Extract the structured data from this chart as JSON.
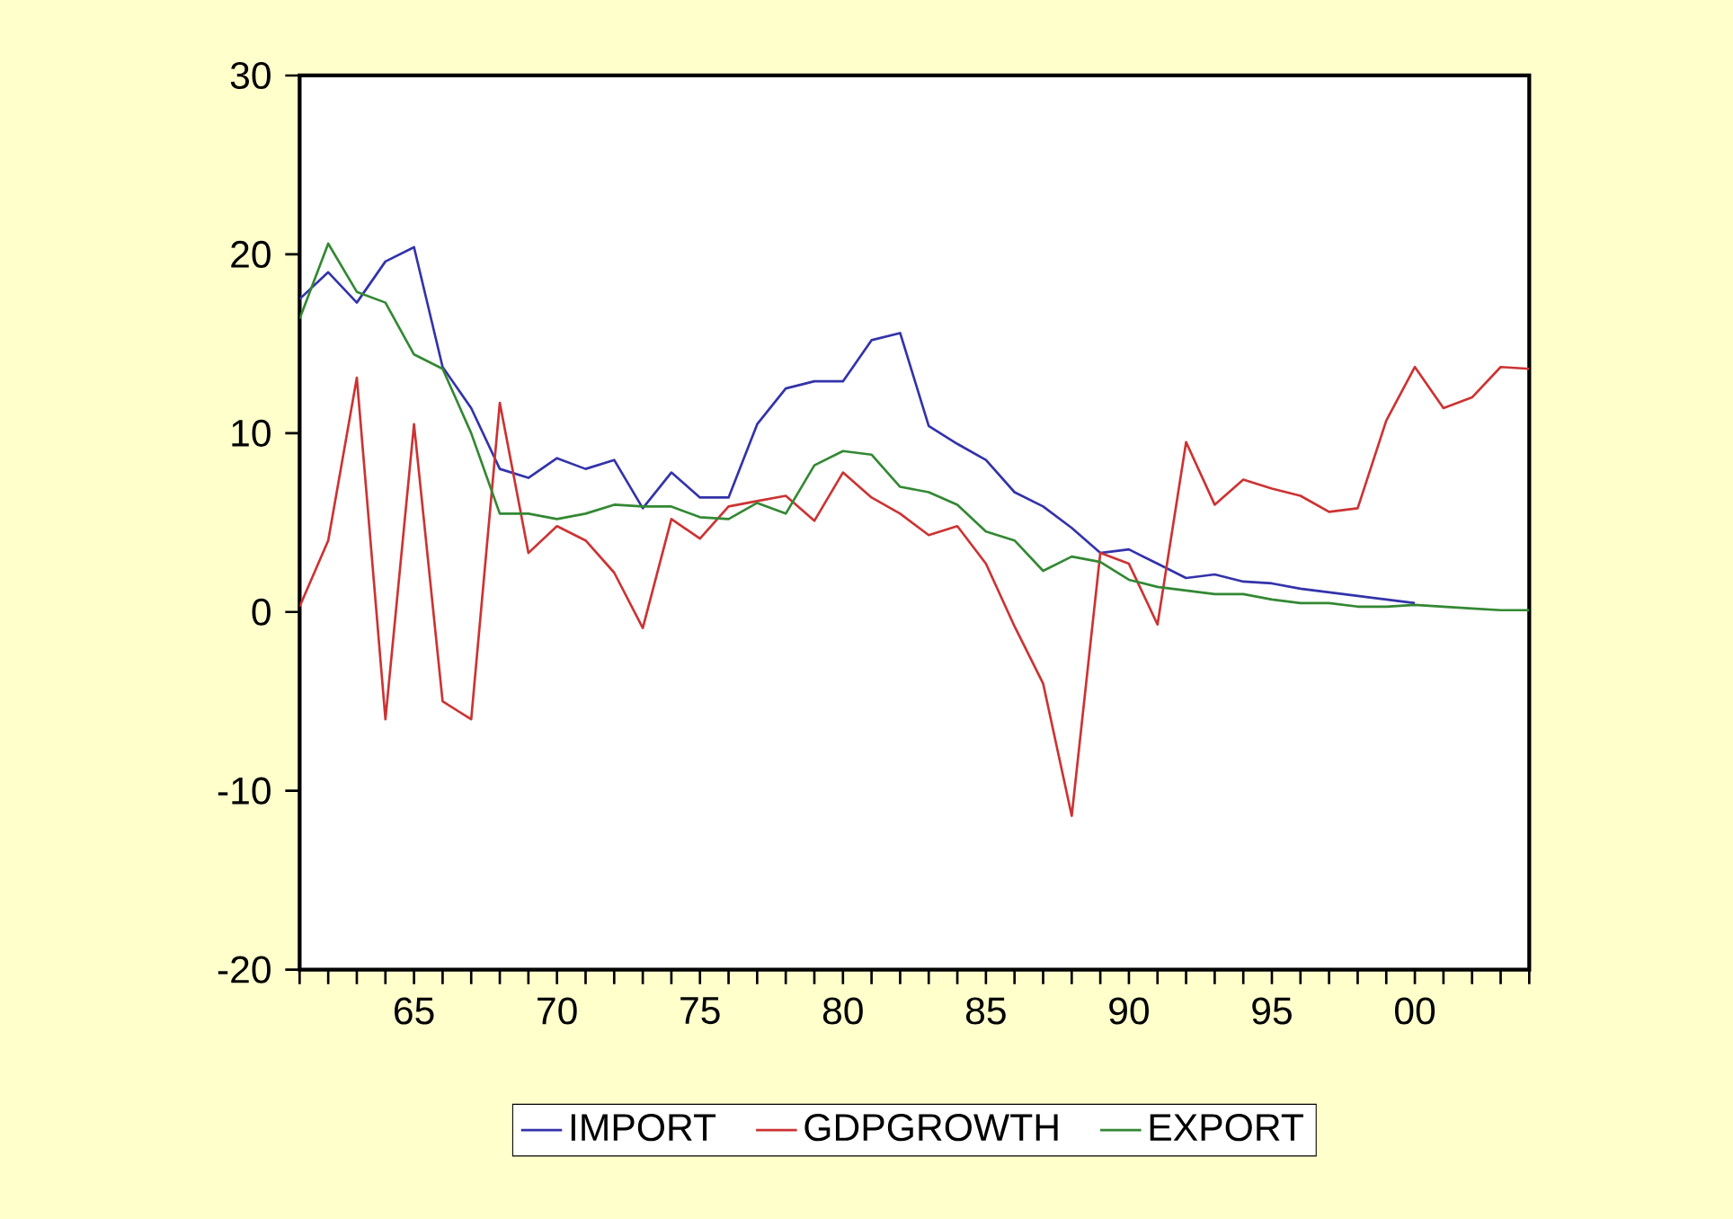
{
  "chart_data": {
    "type": "line",
    "x": [
      1961,
      1962,
      1963,
      1964,
      1965,
      1966,
      1967,
      1968,
      1969,
      1970,
      1971,
      1972,
      1973,
      1974,
      1975,
      1976,
      1977,
      1978,
      1979,
      1980,
      1981,
      1982,
      1983,
      1984,
      1985,
      1986,
      1987,
      1988,
      1989,
      1990,
      1991,
      1992,
      1993,
      1994,
      1995,
      1996,
      1997,
      1998,
      1999,
      2000,
      2001,
      2002,
      2003,
      2004
    ],
    "series": [
      {
        "name": "IMPORT",
        "color": "#3333aa",
        "values": [
          17.5,
          19.0,
          17.3,
          19.6,
          20.4,
          13.7,
          11.4,
          8.0,
          7.5,
          8.6,
          8.0,
          8.5,
          5.8,
          7.8,
          6.4,
          6.4,
          10.5,
          12.5,
          12.9,
          12.9,
          15.2,
          15.6,
          10.4,
          9.4,
          8.5,
          6.7,
          5.9,
          4.7,
          3.3,
          3.5,
          2.7,
          1.9,
          2.1,
          1.7,
          1.6,
          1.3,
          1.1,
          0.9,
          0.7,
          0.5,
          null,
          null,
          null,
          null
        ]
      },
      {
        "name": "GDPGROWTH",
        "color": "#cc3333",
        "values": [
          0.3,
          4.0,
          13.1,
          -6.0,
          10.5,
          -5.0,
          -6.0,
          11.7,
          3.3,
          4.8,
          4.0,
          2.2,
          -0.9,
          5.2,
          4.1,
          5.9,
          6.2,
          6.5,
          5.1,
          7.8,
          6.4,
          5.5,
          4.3,
          4.8,
          2.7,
          -0.8,
          -4.0,
          -11.4,
          3.3,
          2.7,
          -0.7,
          9.5,
          6.0,
          7.4,
          6.9,
          6.5,
          5.6,
          5.8,
          10.7,
          13.7,
          11.4,
          12.0,
          13.7,
          13.6
        ]
      },
      {
        "name": "EXPORT",
        "color": "#338833",
        "values": [
          16.4,
          20.6,
          17.9,
          17.3,
          14.4,
          13.6,
          10.0,
          5.5,
          5.5,
          5.2,
          5.5,
          6.0,
          5.9,
          5.9,
          5.3,
          5.2,
          6.1,
          5.5,
          8.2,
          9.0,
          8.8,
          7.0,
          6.7,
          6.0,
          4.5,
          4.0,
          2.3,
          3.1,
          2.8,
          1.8,
          1.4,
          1.2,
          1.0,
          1.0,
          0.7,
          0.5,
          0.5,
          0.3,
          0.3,
          0.4,
          0.3,
          0.2,
          0.1,
          0.1
        ]
      }
    ],
    "xlim": [
      1961,
      2004
    ],
    "xticks": [
      {
        "value": 1961,
        "label": null
      },
      {
        "value": 1962,
        "label": null
      },
      {
        "value": 1963,
        "label": null
      },
      {
        "value": 1964,
        "label": null
      },
      {
        "value": 1965,
        "label": "65"
      },
      {
        "value": 1966,
        "label": null
      },
      {
        "value": 1967,
        "label": null
      },
      {
        "value": 1968,
        "label": null
      },
      {
        "value": 1969,
        "label": null
      },
      {
        "value": 1970,
        "label": "70"
      },
      {
        "value": 1971,
        "label": null
      },
      {
        "value": 1972,
        "label": null
      },
      {
        "value": 1973,
        "label": null
      },
      {
        "value": 1974,
        "label": null
      },
      {
        "value": 1975,
        "label": "75"
      },
      {
        "value": 1976,
        "label": null
      },
      {
        "value": 1977,
        "label": null
      },
      {
        "value": 1978,
        "label": null
      },
      {
        "value": 1979,
        "label": null
      },
      {
        "value": 1980,
        "label": "80"
      },
      {
        "value": 1981,
        "label": null
      },
      {
        "value": 1982,
        "label": null
      },
      {
        "value": 1983,
        "label": null
      },
      {
        "value": 1984,
        "label": null
      },
      {
        "value": 1985,
        "label": "85"
      },
      {
        "value": 1986,
        "label": null
      },
      {
        "value": 1987,
        "label": null
      },
      {
        "value": 1988,
        "label": null
      },
      {
        "value": 1989,
        "label": null
      },
      {
        "value": 1990,
        "label": "90"
      },
      {
        "value": 1991,
        "label": null
      },
      {
        "value": 1992,
        "label": null
      },
      {
        "value": 1993,
        "label": null
      },
      {
        "value": 1994,
        "label": null
      },
      {
        "value": 1995,
        "label": "95"
      },
      {
        "value": 1996,
        "label": null
      },
      {
        "value": 1997,
        "label": null
      },
      {
        "value": 1998,
        "label": null
      },
      {
        "value": 1999,
        "label": null
      },
      {
        "value": 2000,
        "label": "00"
      },
      {
        "value": 2001,
        "label": null
      },
      {
        "value": 2002,
        "label": null
      },
      {
        "value": 2003,
        "label": null
      },
      {
        "value": 2004,
        "label": null
      }
    ],
    "ylim": [
      -20,
      30
    ],
    "yticks": [
      -20,
      -10,
      0,
      10,
      20,
      30
    ],
    "legend": "bottom",
    "grid": false,
    "marker": "none",
    "line_style": "solid"
  }
}
